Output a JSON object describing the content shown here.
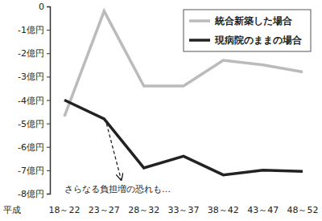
{
  "chart_data": {
    "type": "line",
    "x_label": "平成",
    "categories": [
      "18～22",
      "23～27",
      "28～32",
      "33～37",
      "38～42",
      "43～47",
      "48～52"
    ],
    "series": [
      {
        "name": "統合新築した場合",
        "color": "#bbbbbb",
        "values": [
          -4.7,
          -0.2,
          -3.4,
          -3.4,
          -2.3,
          -2.5,
          -2.8
        ]
      },
      {
        "name": "現病院のままの場合",
        "color": "#222222",
        "values": [
          -4.0,
          -4.8,
          -6.9,
          -6.4,
          -7.2,
          -7.0,
          -7.05
        ]
      }
    ],
    "ylim": [
      -8,
      0
    ],
    "yticks": [
      0,
      {
        "value": -1,
        "label": "-1億円"
      },
      {
        "value": -2,
        "label": "-2億円"
      },
      {
        "value": -3,
        "label": "-3億円"
      },
      {
        "value": -4,
        "label": "-4億円"
      },
      {
        "value": -5,
        "label": "-5億円"
      },
      {
        "value": -6,
        "label": "-6億円"
      },
      {
        "value": -7,
        "label": "-7億円"
      },
      {
        "value": -8,
        "label": "-8億円"
      }
    ],
    "annotations": [
      "さらなる負担増の恐れも…"
    ],
    "legend": "upper right",
    "grid": false
  }
}
